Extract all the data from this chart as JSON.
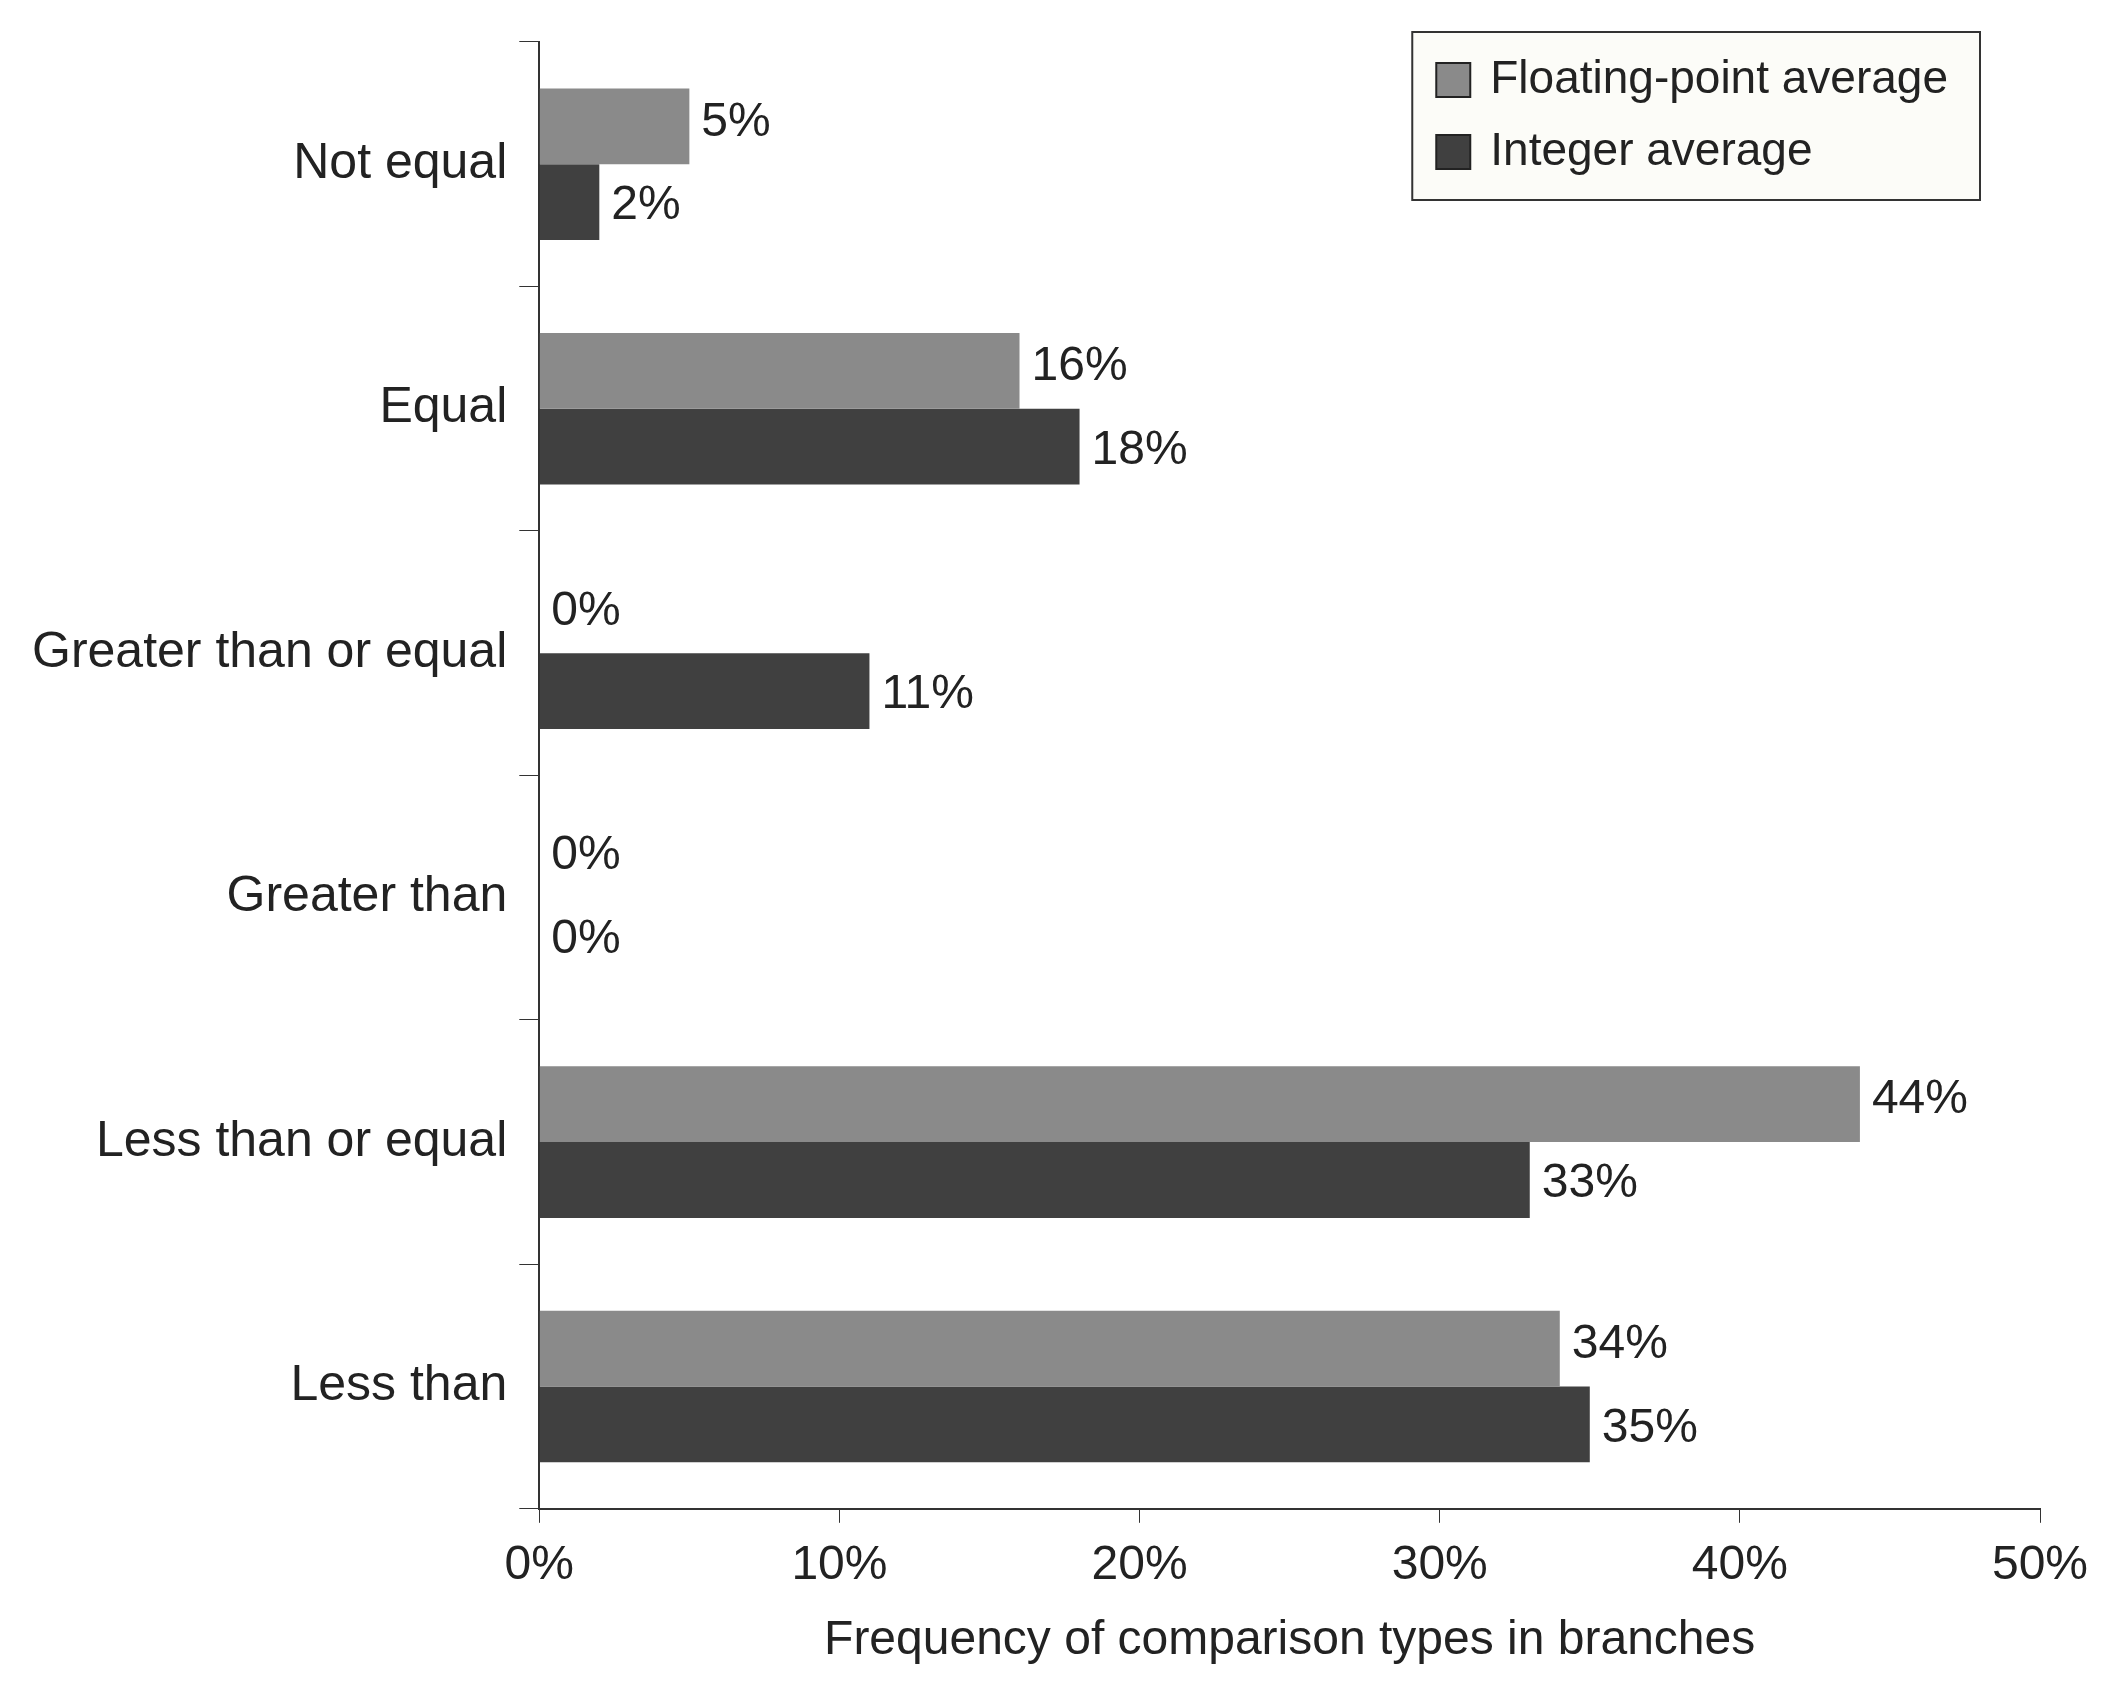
{
  "chart_data": {
    "type": "bar",
    "orientation": "horizontal",
    "xlabel": "Frequency of comparison types in branches",
    "categories": [
      "Not equal",
      "Equal",
      "Greater than or equal",
      "Greater than",
      "Less than or equal",
      "Less than"
    ],
    "series": [
      {
        "name": "Floating-point average",
        "color": "#8a8a8a",
        "values": [
          5,
          16,
          0,
          0,
          44,
          34
        ],
        "value_labels": [
          "5%",
          "16%",
          "0%",
          "0%",
          "44%",
          "34%"
        ]
      },
      {
        "name": "Integer average",
        "color": "#404040",
        "values": [
          2,
          18,
          11,
          0,
          33,
          35
        ],
        "value_labels": [
          "2%",
          "18%",
          "11%",
          "0%",
          "33%",
          "35%"
        ]
      }
    ],
    "xlim": [
      0,
      50
    ],
    "xticks": [
      {
        "value": 0,
        "label": "0%"
      },
      {
        "value": 10,
        "label": "10%"
      },
      {
        "value": 20,
        "label": "20%"
      },
      {
        "value": 30,
        "label": "30%"
      },
      {
        "value": 40,
        "label": "40%"
      },
      {
        "value": 50,
        "label": "50%"
      }
    ],
    "grid": false,
    "legend": "top right"
  }
}
